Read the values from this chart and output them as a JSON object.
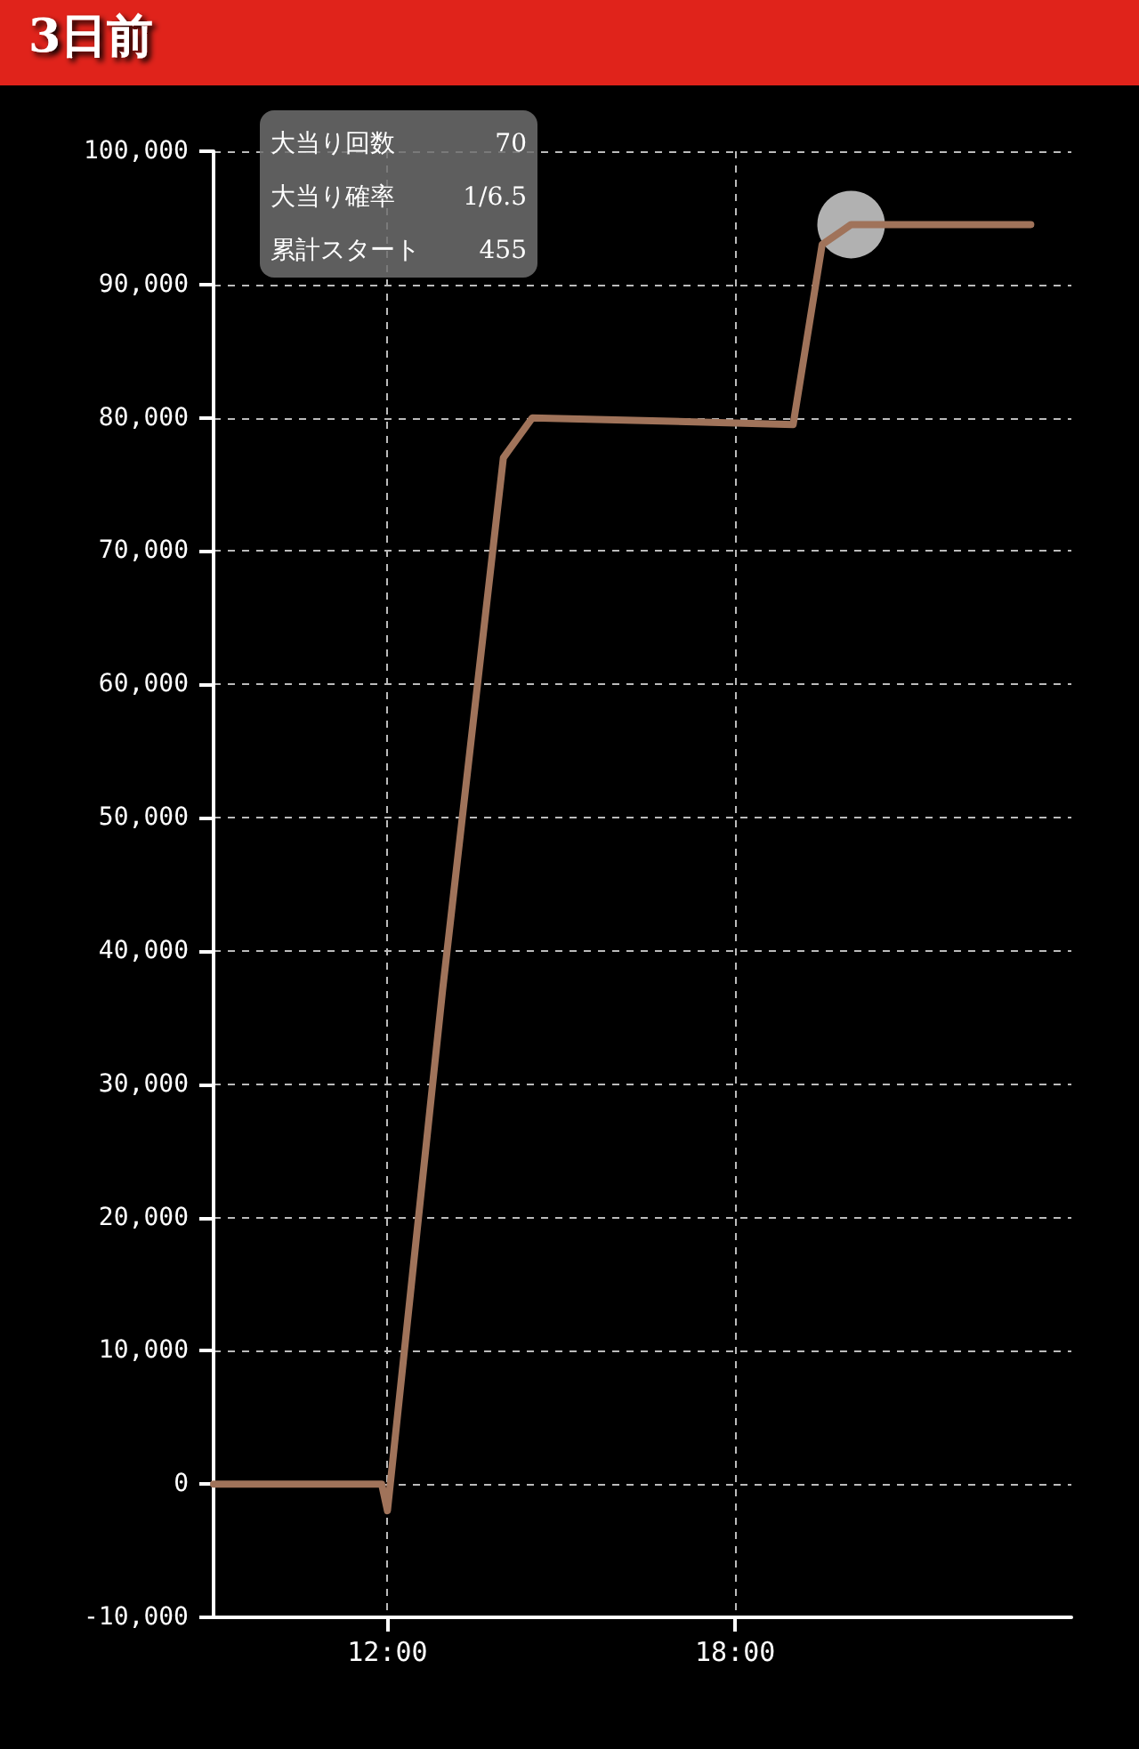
{
  "chart_data": {
    "type": "line",
    "title": "3日前",
    "annotations": [
      "大当り回数",
      "70",
      "大当り確率",
      "1/6.5",
      "累計スタート",
      "455"
    ],
    "series": [
      {
        "color": "#a0735a",
        "marker": "none",
        "x": [
          9,
          11.9,
          12.0,
          12.95,
          14.0,
          14.5,
          19.0,
          19.5,
          20.0,
          23.1
        ],
        "values": [
          0,
          0,
          -2000,
          37000,
          77000,
          80000,
          79500,
          93000,
          94500,
          94500
        ]
      },
      {
        "type": "scatter",
        "marker": "circle",
        "color": "#d0d0d0",
        "x": [
          20.0
        ],
        "values": [
          94500
        ]
      }
    ],
    "xlim": [
      9,
      23.8
    ],
    "xticks": [
      {
        "value": 12,
        "label": "12:00"
      },
      {
        "value": 18,
        "label": "18:00"
      }
    ],
    "ylim": [
      -10000,
      100000
    ],
    "yticks": [
      {
        "value": -10000,
        "label": "-10,000"
      },
      {
        "value": 0,
        "label": "0"
      },
      {
        "value": 10000,
        "label": "10,000"
      },
      {
        "value": 20000,
        "label": "20,000"
      },
      {
        "value": 30000,
        "label": "30,000"
      },
      {
        "value": 40000,
        "label": "40,000"
      },
      {
        "value": 50000,
        "label": "50,000"
      },
      {
        "value": 60000,
        "label": "60,000"
      },
      {
        "value": 70000,
        "label": "70,000"
      },
      {
        "value": 80000,
        "label": "80,000"
      },
      {
        "value": 90000,
        "label": "90,000"
      },
      {
        "value": 100000,
        "label": "100,000"
      }
    ],
    "grid": true,
    "line_style": "solid"
  }
}
